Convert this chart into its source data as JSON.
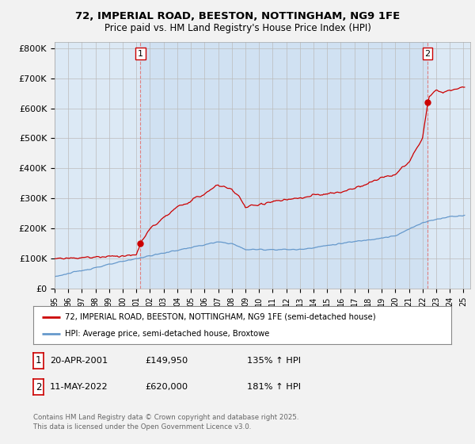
{
  "title1": "72, IMPERIAL ROAD, BEESTON, NOTTINGHAM, NG9 1FE",
  "title2": "Price paid vs. HM Land Registry's House Price Index (HPI)",
  "ylim": [
    0,
    820000
  ],
  "yticks": [
    0,
    100000,
    200000,
    300000,
    400000,
    500000,
    600000,
    700000,
    800000
  ],
  "ytick_labels": [
    "£0",
    "£100K",
    "£200K",
    "£300K",
    "£400K",
    "£500K",
    "£600K",
    "£700K",
    "£800K"
  ],
  "background_color": "#f2f2f2",
  "plot_bg_color": "#dce9f5",
  "legend_line1": "72, IMPERIAL ROAD, BEESTON, NOTTINGHAM, NG9 1FE (semi-detached house)",
  "legend_line2": "HPI: Average price, semi-detached house, Broxtowe",
  "line1_color": "#cc0000",
  "line2_color": "#6699cc",
  "shade_color": "#c8ddf0",
  "annotation1_label": "1",
  "annotation1_date": "20-APR-2001",
  "annotation1_price": "£149,950",
  "annotation1_hpi": "135% ↑ HPI",
  "annotation2_label": "2",
  "annotation2_date": "11-MAY-2022",
  "annotation2_price": "£620,000",
  "annotation2_hpi": "181% ↑ HPI",
  "footer": "Contains HM Land Registry data © Crown copyright and database right 2025.\nThis data is licensed under the Open Government Licence v3.0.",
  "sale1_x": 2001.3,
  "sale1_y": 149950,
  "sale2_x": 2022.37,
  "sale2_y": 620000,
  "xmin": 1995,
  "xmax": 2025.5
}
